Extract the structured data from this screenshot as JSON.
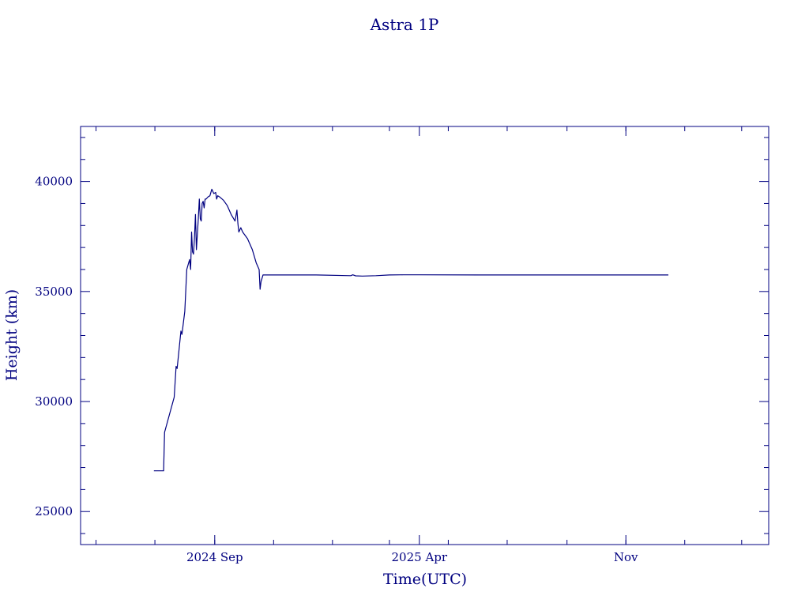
{
  "chart_data": {
    "type": "line",
    "title": "Astra 1P",
    "xlabel": "Time(UTC)",
    "ylabel": "Height (km)",
    "colors": {
      "line": "#000080",
      "axes": "#000080",
      "background": "#ffffff"
    },
    "grid": false,
    "legend": "none",
    "xlim": [
      "2024-04-15",
      "2026-03-29"
    ],
    "ylim": [
      23500,
      42500
    ],
    "x_ticks": [
      {
        "value": "2024-09-01",
        "label": "2024 Sep"
      },
      {
        "value": "2025-04-01",
        "label": "2025 Apr"
      },
      {
        "value": "2025-11-01",
        "label": "Nov"
      }
    ],
    "y_ticks": [
      {
        "value": 25000,
        "label": "25000"
      },
      {
        "value": 30000,
        "label": "30000"
      },
      {
        "value": 35000,
        "label": "35000"
      },
      {
        "value": 40000,
        "label": "40000"
      }
    ],
    "x_minor_tick_months": [
      "2024-05-01",
      "2024-07-01",
      "2024-09-01",
      "2024-11-01",
      "2025-01-01",
      "2025-03-01",
      "2025-05-01",
      "2025-07-01",
      "2025-09-01",
      "2025-11-01",
      "2026-01-01",
      "2026-03-01"
    ],
    "y_minor_step": 1000,
    "series": [
      {
        "x": [
          "2024-06-30",
          "2024-07-10",
          "2024-07-11",
          "2024-07-21",
          "2024-07-23",
          "2024-07-24",
          "2024-07-28",
          "2024-07-29",
          "2024-08-01",
          "2024-08-03",
          "2024-08-05",
          "2024-08-06",
          "2024-08-07",
          "2024-08-08",
          "2024-08-09",
          "2024-08-10",
          "2024-08-11",
          "2024-08-12",
          "2024-08-13",
          "2024-08-14",
          "2024-08-15",
          "2024-08-16",
          "2024-08-17",
          "2024-08-18",
          "2024-08-19",
          "2024-08-20",
          "2024-08-21",
          "2024-08-22",
          "2024-08-23",
          "2024-08-25",
          "2024-08-27",
          "2024-08-29",
          "2024-08-31",
          "2024-09-02",
          "2024-09-03",
          "2024-09-04",
          "2024-09-06",
          "2024-09-10",
          "2024-09-14",
          "2024-09-18",
          "2024-09-22",
          "2024-09-24",
          "2024-09-25",
          "2024-09-26",
          "2024-09-28",
          "2024-09-29",
          "2024-09-30",
          "2024-10-05",
          "2024-10-10",
          "2024-10-14",
          "2024-10-17",
          "2024-10-18",
          "2024-10-19",
          "2024-10-21",
          "2024-10-25",
          "2024-10-30",
          "2024-11-01",
          "2024-11-02",
          "2024-11-03",
          "2024-11-08",
          "2024-12-15",
          "2025-01-20",
          "2025-01-22",
          "2025-01-25",
          "2025-02-01",
          "2025-02-15",
          "2025-03-01",
          "2025-03-15",
          "2025-04-01",
          "2025-06-01",
          "2025-09-01",
          "2025-12-15"
        ],
        "values": [
          26850,
          26850,
          28600,
          30200,
          31600,
          31500,
          33200,
          33050,
          34100,
          36000,
          36300,
          36450,
          36000,
          37700,
          36800,
          36700,
          37400,
          38500,
          36900,
          37600,
          38300,
          39200,
          38300,
          38200,
          39000,
          39100,
          38800,
          39200,
          39200,
          39300,
          39350,
          39650,
          39450,
          39500,
          39200,
          39350,
          39300,
          39150,
          38900,
          38500,
          38200,
          38700,
          38100,
          37700,
          37900,
          37800,
          37700,
          37400,
          36900,
          36300,
          36000,
          35100,
          35450,
          35750,
          35750,
          35750,
          35750,
          35750,
          35750,
          35750,
          35750,
          35720,
          35760,
          35710,
          35700,
          35720,
          35750,
          35760,
          35760,
          35750,
          35750,
          35750
        ]
      }
    ]
  }
}
